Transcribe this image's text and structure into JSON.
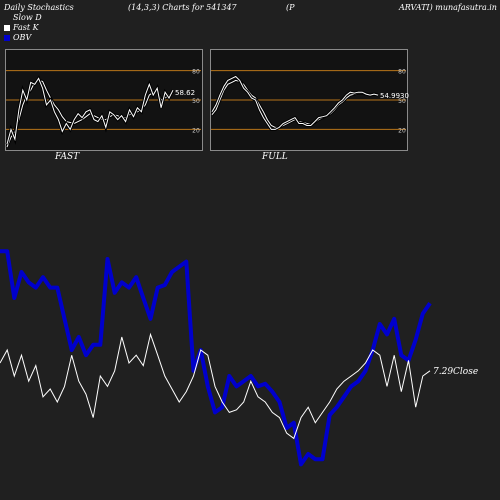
{
  "header": {
    "title": "Daily Stochastics",
    "params": "(14,3,3) Charts for 541347",
    "symbol": "(P",
    "site": "ARVATI) munafasutra.in"
  },
  "legend": [
    {
      "label": "Slow  D",
      "color": "#ffffff"
    },
    {
      "label": "Fast K",
      "color": "#ffffff"
    },
    {
      "label": "OBV",
      "color": "#0000cc"
    }
  ],
  "colors": {
    "background": "#202020",
    "panel": "#121212",
    "level_line": "#b8741a",
    "obv": "#0000cc",
    "price": "#ffffff"
  },
  "chart_data": [
    {
      "type": "line",
      "title": "FAST",
      "ylim": [
        0,
        100
      ],
      "y_ticks": [
        "80",
        "50",
        "20"
      ],
      "last_value_label": "58.62",
      "series": [
        {
          "values": [
            2,
            12,
            18,
            30,
            45,
            55,
            60,
            68,
            70,
            69,
            60,
            52,
            45,
            40,
            33,
            28,
            27,
            26,
            28,
            30,
            33,
            36,
            34,
            32,
            30,
            30,
            33,
            35,
            34,
            32,
            32,
            35,
            36,
            38,
            40,
            45,
            55,
            58,
            60,
            50,
            52,
            55,
            58
          ]
        },
        {
          "values": [
            5,
            20,
            10,
            40,
            60,
            50,
            68,
            66,
            72,
            62,
            45,
            50,
            38,
            30,
            18,
            26,
            20,
            30,
            36,
            32,
            38,
            40,
            30,
            28,
            34,
            22,
            38,
            35,
            30,
            34,
            28,
            40,
            33,
            42,
            38,
            55,
            66,
            55,
            62,
            42,
            58,
            52,
            60
          ]
        }
      ]
    },
    {
      "type": "line",
      "title": "FULL",
      "ylim": [
        0,
        100
      ],
      "y_ticks": [
        "80",
        "50",
        "20"
      ],
      "last_value_label": "54.9930",
      "series": [
        {
          "values": [
            35,
            40,
            50,
            60,
            66,
            68,
            70,
            69,
            66,
            60,
            55,
            52,
            45,
            38,
            30,
            24,
            22,
            22,
            24,
            26,
            28,
            30,
            28,
            27,
            26,
            25,
            27,
            30,
            32,
            34,
            36,
            40,
            45,
            48,
            52,
            55,
            56,
            57,
            57,
            56,
            55,
            56,
            55
          ]
        },
        {
          "values": [
            38,
            45,
            55,
            64,
            70,
            72,
            74,
            70,
            62,
            58,
            52,
            50,
            40,
            32,
            26,
            20,
            20,
            22,
            26,
            28,
            30,
            32,
            26,
            26,
            24,
            24,
            28,
            32,
            33,
            34,
            38,
            42,
            47,
            50,
            55,
            58,
            57,
            58,
            58,
            56,
            55,
            56,
            55
          ]
        }
      ]
    },
    {
      "type": "line",
      "last_value_label": "7.29Close",
      "series": [
        {
          "values": [
            88,
            88,
            70,
            80,
            76,
            74,
            78,
            74,
            74,
            62,
            50,
            55,
            48,
            52,
            52,
            85,
            72,
            76,
            74,
            78,
            70,
            62,
            74,
            75,
            80,
            82,
            84,
            42,
            50,
            36,
            26,
            28,
            40,
            36,
            38,
            40,
            36,
            37,
            34,
            30,
            20,
            22,
            6,
            10,
            8,
            8,
            25,
            28,
            32,
            36,
            38,
            42,
            50,
            60,
            56,
            62,
            48,
            46,
            54,
            64,
            68
          ]
        },
        {
          "values": [
            45,
            50,
            40,
            48,
            38,
            44,
            32,
            35,
            30,
            36,
            48,
            38,
            33,
            24,
            40,
            36,
            42,
            55,
            45,
            48,
            44,
            56,
            48,
            40,
            35,
            30,
            34,
            40,
            50,
            48,
            36,
            30,
            26,
            27,
            30,
            38,
            32,
            30,
            26,
            24,
            18,
            16,
            24,
            28,
            22,
            26,
            30,
            35,
            38,
            40,
            42,
            45,
            50,
            48,
            36,
            48,
            34,
            46,
            28,
            40,
            42
          ]
        }
      ]
    }
  ]
}
